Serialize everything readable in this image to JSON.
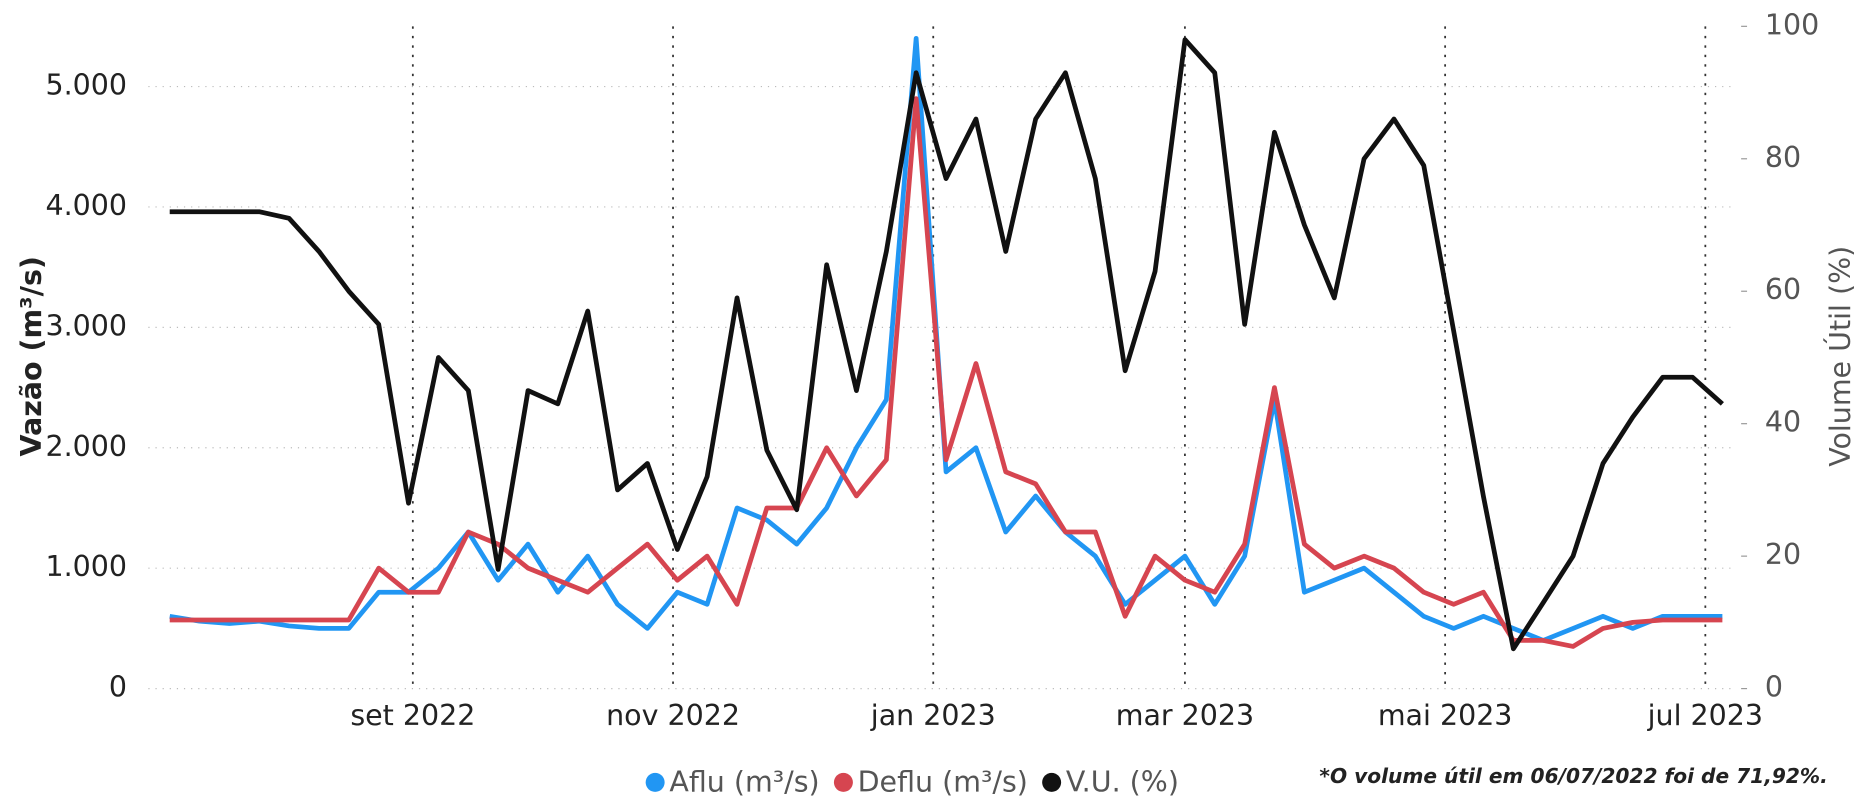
{
  "chart_data": {
    "type": "line",
    "y_label": "Vazão (m³/s)",
    "y2_label": "Volume Útil (%)",
    "footnote": "*O volume útil em 06/07/2022 foi de 71,92%.",
    "x": [
      "2022-07-06",
      "2022-07-13",
      "2022-07-20",
      "2022-07-27",
      "2022-08-03",
      "2022-08-10",
      "2022-08-17",
      "2022-08-24",
      "2022-08-31",
      "2022-09-07",
      "2022-09-14",
      "2022-09-21",
      "2022-09-28",
      "2022-10-05",
      "2022-10-12",
      "2022-10-19",
      "2022-10-26",
      "2022-11-02",
      "2022-11-09",
      "2022-11-16",
      "2022-11-23",
      "2022-11-30",
      "2022-12-07",
      "2022-12-14",
      "2022-12-21",
      "2022-12-28",
      "2023-01-04",
      "2023-01-11",
      "2023-01-18",
      "2023-01-25",
      "2023-02-01",
      "2023-02-08",
      "2023-02-15",
      "2023-02-22",
      "2023-03-01",
      "2023-03-08",
      "2023-03-15",
      "2023-03-22",
      "2023-03-29",
      "2023-04-05",
      "2023-04-12",
      "2023-04-19",
      "2023-04-26",
      "2023-05-03",
      "2023-05-10",
      "2023-05-17",
      "2023-05-24",
      "2023-05-31",
      "2023-06-07",
      "2023-06-14",
      "2023-06-21",
      "2023-06-28",
      "2023-07-05"
    ],
    "xlim": [
      "2022-07-01",
      "2023-07-08"
    ],
    "xticks": [
      {
        "value": "2022-09-01",
        "label": "set 2022"
      },
      {
        "value": "2022-11-01",
        "label": "nov 2022"
      },
      {
        "value": "2023-01-01",
        "label": "jan 2023"
      },
      {
        "value": "2023-03-01",
        "label": "mar 2023"
      },
      {
        "value": "2023-05-01",
        "label": "mai 2023"
      },
      {
        "value": "2023-07-01",
        "label": "jul 2023"
      }
    ],
    "ylim": [
      0,
      5500
    ],
    "yticks": [
      0,
      {
        "value": 1000,
        "label": "1.000"
      },
      {
        "value": 2000,
        "label": "2.000"
      },
      {
        "value": 3000,
        "label": "3.000"
      },
      {
        "value": 4000,
        "label": "4.000"
      },
      {
        "value": 5000,
        "label": "5.000"
      }
    ],
    "y2lim": [
      0,
      100
    ],
    "y2ticks": [
      0,
      20,
      40,
      60,
      80,
      100
    ],
    "grid": true,
    "series": [
      {
        "name": "Aflu (m³/s)",
        "color": "#2196f3",
        "values": [
          600,
          560,
          540,
          560,
          520,
          500,
          500,
          800,
          800,
          1000,
          1300,
          900,
          1200,
          800,
          1100,
          700,
          500,
          800,
          700,
          1500,
          1400,
          1200,
          1500,
          2000,
          2400,
          5400,
          1800,
          2000,
          1300,
          1600,
          1300,
          1100,
          700,
          900,
          1100,
          700,
          1100,
          2400,
          800,
          900,
          1000,
          800,
          600,
          500,
          600,
          500,
          400,
          500,
          600,
          500,
          600,
          600,
          600
        ]
      },
      {
        "name": "Deflu (m³/s)",
        "color": "#d64550",
        "values": [
          570,
          570,
          570,
          570,
          570,
          570,
          570,
          1000,
          800,
          800,
          1300,
          1200,
          1000,
          900,
          800,
          1000,
          1200,
          900,
          1100,
          700,
          1500,
          1500,
          2000,
          1600,
          1900,
          4900,
          1900,
          2700,
          1800,
          1700,
          1300,
          1300,
          600,
          1100,
          900,
          800,
          1200,
          2500,
          1200,
          1000,
          1100,
          1000,
          800,
          700,
          800,
          400,
          400,
          350,
          500,
          550,
          570,
          570,
          570
        ]
      },
      {
        "name": "V.U. (%)",
        "color": "#111111",
        "axis": "y2",
        "values": [
          72,
          72,
          72,
          72,
          71,
          66,
          60,
          55,
          28,
          50,
          45,
          18,
          45,
          43,
          57,
          30,
          34,
          21,
          32,
          59,
          36,
          27,
          64,
          45,
          66,
          93,
          77,
          86,
          66,
          86,
          93,
          77,
          48,
          63,
          98,
          93,
          55,
          84,
          70,
          59,
          80,
          86,
          79,
          54,
          29,
          6,
          13,
          20,
          34,
          41,
          47,
          47,
          43
        ]
      }
    ]
  }
}
